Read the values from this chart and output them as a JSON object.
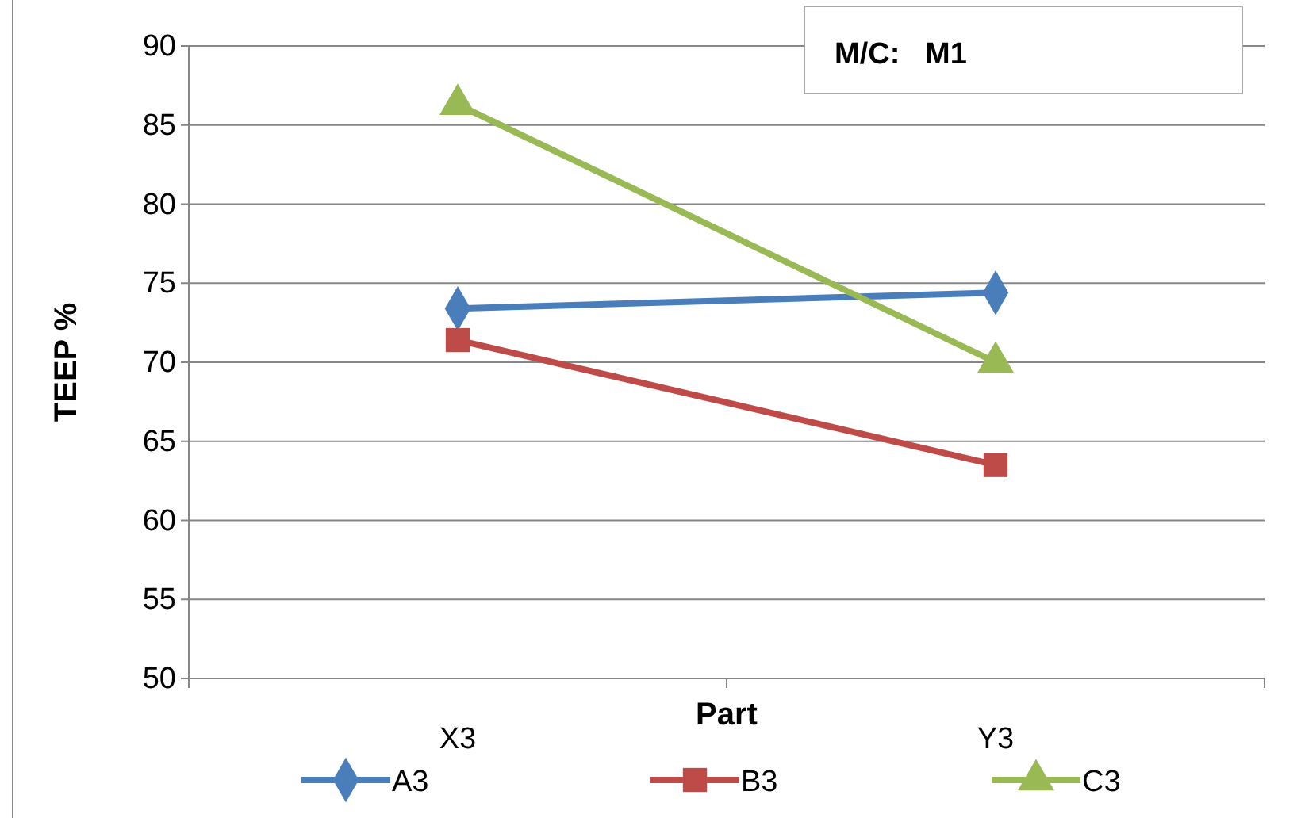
{
  "chart_data": {
    "type": "line",
    "xlabel": "Part",
    "ylabel": "TEEP %",
    "annotations": [
      "M/C:   M1"
    ],
    "categories": [
      "X3",
      "Y3"
    ],
    "series": [
      {
        "name": "A3",
        "color": "#4a7ebb",
        "values": [
          73.4,
          74.4
        ],
        "marker": "diamond"
      },
      {
        "name": "B3",
        "color": "#be4b48",
        "values": [
          71.4,
          63.5
        ],
        "marker": "square"
      },
      {
        "name": "C3",
        "color": "#98b954",
        "values": [
          86.3,
          70.0
        ],
        "marker": "triangle"
      }
    ],
    "ylim": [
      50,
      90
    ],
    "yticks": [
      50,
      55,
      60,
      65,
      70,
      75,
      80,
      85,
      90
    ],
    "grid": "y",
    "legend": "bottom"
  }
}
